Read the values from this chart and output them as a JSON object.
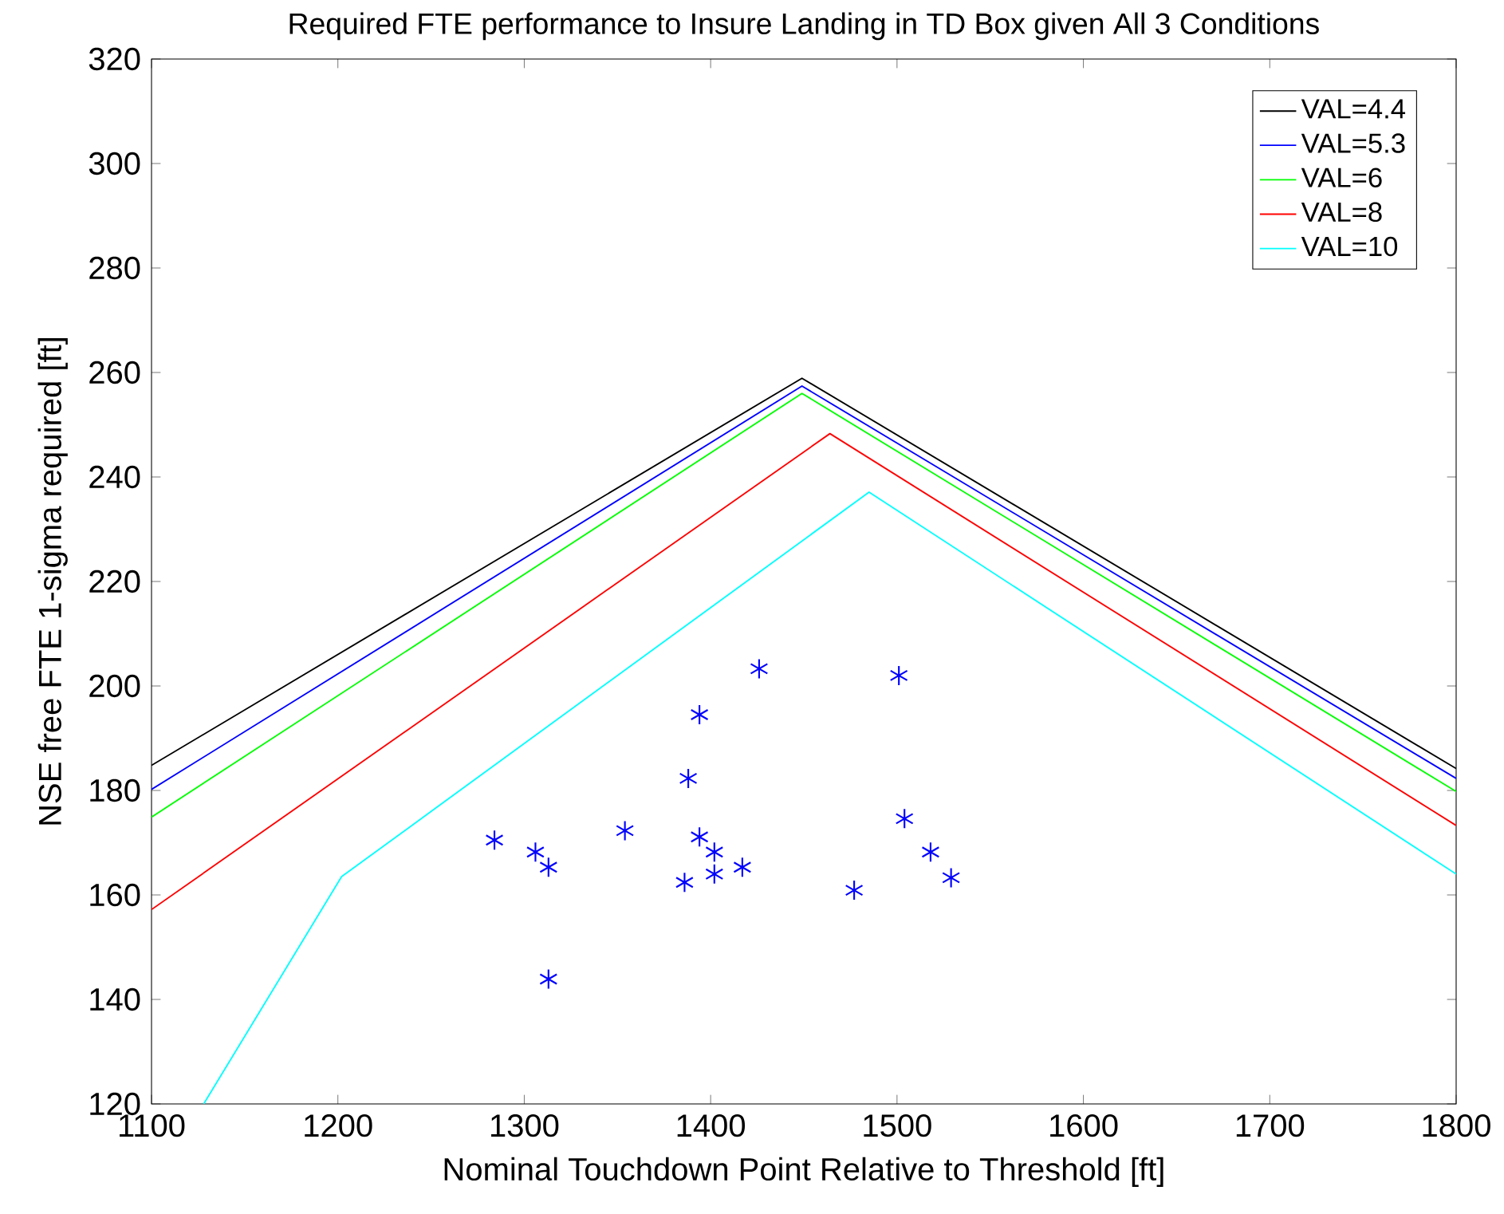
{
  "chart_data": {
    "type": "line",
    "title": "Required FTE performance to Insure Landing in TD Box given All 3 Conditions",
    "xlabel": "Nominal Touchdown Point Relative to Threshold [ft]",
    "ylabel": "NSE free FTE 1-sigma required [ft]",
    "xlim": [
      1100,
      1800
    ],
    "ylim": [
      120,
      320
    ],
    "xticks": [
      1100,
      1200,
      1300,
      1400,
      1500,
      1600,
      1700,
      1800
    ],
    "yticks": [
      120,
      140,
      160,
      180,
      200,
      220,
      240,
      260,
      280,
      300,
      320
    ],
    "grid": false,
    "legend": "top right",
    "series": [
      {
        "name": "VAL=4.4",
        "color": "#000000",
        "x": [
          1100,
          1449,
          1800
        ],
        "values": [
          184.8,
          258.9,
          184.2
        ]
      },
      {
        "name": "VAL=5.3",
        "color": "#0000ff",
        "x": [
          1100,
          1449,
          1800
        ],
        "values": [
          180.2,
          257.4,
          182.3
        ]
      },
      {
        "name": "VAL=6",
        "color": "#00ff00",
        "x": [
          1100,
          1449,
          1800
        ],
        "values": [
          174.9,
          256,
          179.8
        ]
      },
      {
        "name": "VAL=8",
        "color": "#ff0000",
        "x": [
          1100,
          1464,
          1800
        ],
        "values": [
          157.2,
          248.3,
          173.3
        ]
      },
      {
        "name": "VAL=10",
        "color": "#00ffff",
        "x": [
          1128,
          1202,
          1485,
          1800
        ],
        "values": [
          120,
          163.5,
          237.1,
          164
        ]
      },
      {
        "type": "scatter",
        "marker": "cross",
        "color": "#0000ff",
        "x": [
          1284,
          1306,
          1313,
          1313,
          1354,
          1388,
          1394,
          1394,
          1402,
          1402,
          1386,
          1417,
          1426,
          1477,
          1501,
          1504,
          1518,
          1529
        ],
        "values": [
          170.5,
          168.2,
          165.3,
          143.9,
          172.3,
          182.3,
          194.5,
          171.1,
          168.2,
          164,
          162.4,
          165.3,
          203.3,
          160.9,
          202,
          174.6,
          168.2,
          163.3
        ]
      }
    ]
  }
}
